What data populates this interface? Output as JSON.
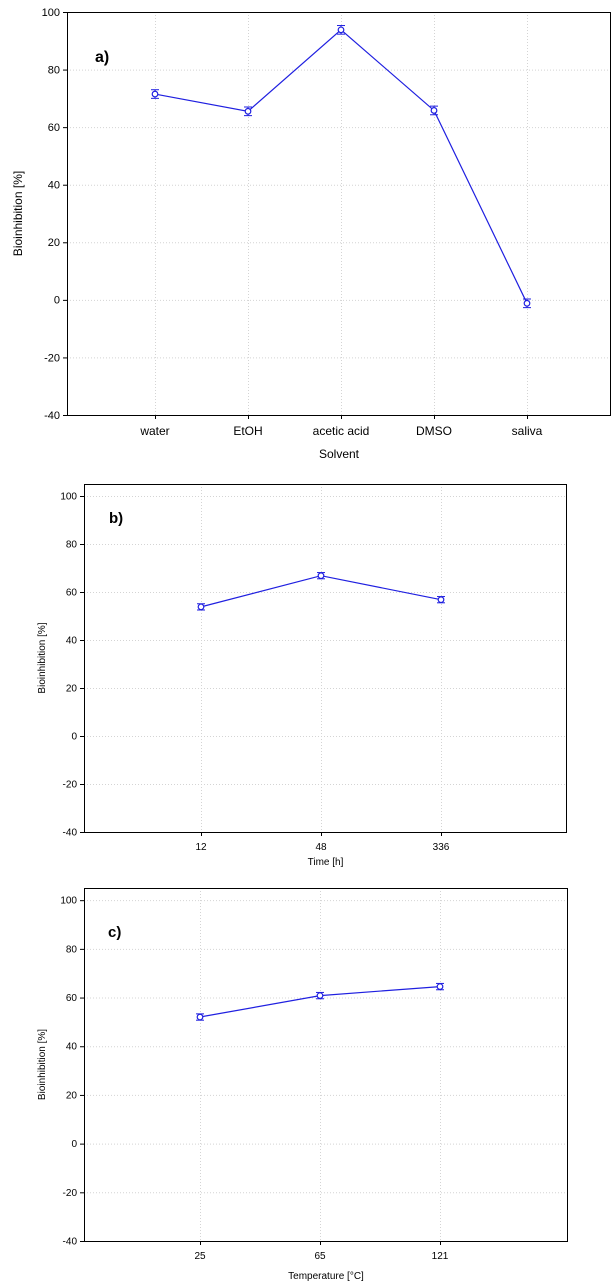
{
  "colors": {
    "series": "#1f1fe0",
    "grid": "#d4d4d4",
    "frame": "#000000",
    "marker_fill": "#ffffff"
  },
  "chart_data": [
    {
      "type": "line",
      "panel_label": "a)",
      "xlabel": "Solvent",
      "ylabel": "Bioinhibition [%]",
      "categories": [
        "water",
        "EtOH",
        "acetic acid",
        "DMSO",
        "saliva"
      ],
      "values": [
        71.5,
        65.5,
        93.8,
        65.8,
        -1.2
      ],
      "error": [
        1.5,
        1.5,
        1.5,
        1.5,
        1.5
      ],
      "ylim": [
        -40,
        100
      ],
      "yticks": [
        -40,
        -20,
        0,
        20,
        40,
        60,
        80,
        100
      ],
      "grid": true
    },
    {
      "type": "line",
      "panel_label": "b)",
      "xlabel": "Time [h]",
      "ylabel": "Bioinhibition [%]",
      "categories": [
        "12",
        "48",
        "336"
      ],
      "values": [
        53.8,
        66.8,
        56.8
      ],
      "error": [
        1.3,
        1.3,
        1.3
      ],
      "ylim": [
        -40,
        105
      ],
      "yticks": [
        -40,
        -20,
        0,
        20,
        40,
        60,
        80,
        100
      ],
      "grid": true
    },
    {
      "type": "line",
      "panel_label": "c)",
      "xlabel": "Temperature [°C]",
      "ylabel": "Bioinhibition [%]",
      "categories": [
        "25",
        "65",
        "121"
      ],
      "values": [
        52.0,
        60.8,
        64.5
      ],
      "error": [
        1.3,
        1.3,
        1.3
      ],
      "ylim": [
        -40,
        105
      ],
      "yticks": [
        -40,
        -20,
        0,
        20,
        40,
        60,
        80,
        100
      ],
      "grid": true
    }
  ]
}
